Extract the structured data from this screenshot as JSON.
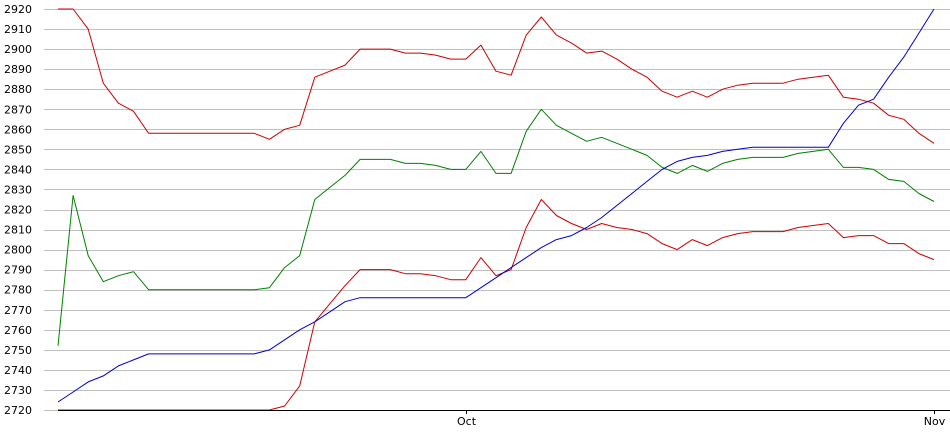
{
  "chart_data": {
    "type": "line",
    "title": "",
    "xlabel": "",
    "ylabel": "",
    "ylim": [
      2720,
      2920
    ],
    "y_ticks": [
      2720,
      2730,
      2740,
      2750,
      2760,
      2770,
      2780,
      2790,
      2800,
      2810,
      2820,
      2830,
      2840,
      2850,
      2860,
      2870,
      2880,
      2890,
      2900,
      2910,
      2920
    ],
    "x_tick_labels": [
      {
        "label": "Oct",
        "index": 27
      },
      {
        "label": "Nov",
        "index": 58
      }
    ],
    "grid": "horizontal",
    "legend": "none",
    "colors": {
      "upper_band": "#cc0000",
      "middle_band": "#008000",
      "lower_band": "#cc0000",
      "price": "#0000cc",
      "grid": "#c0c0c0",
      "axis": "#000000"
    },
    "series": [
      {
        "key": "upper_band",
        "values": [
          2920,
          2920,
          2910,
          2883,
          2873,
          2869,
          2858,
          2858,
          2858,
          2858,
          2858,
          2858,
          2858,
          2858,
          2855,
          2860,
          2862,
          2886,
          2889,
          2892,
          2900,
          2900,
          2900,
          2898,
          2898,
          2897,
          2895,
          2895,
          2902,
          2889,
          2887,
          2907,
          2916,
          2907,
          2903,
          2898,
          2899,
          2895,
          2890,
          2886,
          2879,
          2876,
          2879,
          2876,
          2880,
          2882,
          2883,
          2883,
          2883,
          2885,
          2886,
          2887,
          2876,
          2875,
          2873,
          2867,
          2865,
          2858,
          2853
        ]
      },
      {
        "key": "middle_band",
        "values": [
          2752,
          2827,
          2797,
          2784,
          2787,
          2789,
          2780,
          2780,
          2780,
          2780,
          2780,
          2780,
          2780,
          2780,
          2781,
          2791,
          2797,
          2825,
          2831,
          2837,
          2845,
          2845,
          2845,
          2843,
          2843,
          2842,
          2840,
          2840,
          2849,
          2838,
          2838,
          2859,
          2870,
          2862,
          2858,
          2854,
          2856,
          2853,
          2850,
          2847,
          2841,
          2838,
          2842,
          2839,
          2843,
          2845,
          2846,
          2846,
          2846,
          2848,
          2849,
          2850,
          2841,
          2841,
          2840,
          2835,
          2834,
          2828,
          2824
        ]
      },
      {
        "key": "lower_band",
        "values": [
          2720,
          2720,
          2720,
          2720,
          2720,
          2720,
          2720,
          2720,
          2720,
          2720,
          2720,
          2720,
          2720,
          2720,
          2720,
          2722,
          2732,
          2764,
          2773,
          2782,
          2790,
          2790,
          2790,
          2788,
          2788,
          2787,
          2785,
          2785,
          2796,
          2787,
          2790,
          2811,
          2825,
          2817,
          2813,
          2810,
          2813,
          2811,
          2810,
          2808,
          2803,
          2800,
          2805,
          2802,
          2806,
          2808,
          2809,
          2809,
          2809,
          2811,
          2812,
          2813,
          2806,
          2807,
          2807,
          2803,
          2803,
          2798,
          2795
        ]
      },
      {
        "key": "price",
        "values": [
          2724,
          2729,
          2734,
          2737,
          2742,
          2745,
          2748,
          2748,
          2748,
          2748,
          2748,
          2748,
          2748,
          2748,
          2750,
          2755,
          2760,
          2764,
          2769,
          2774,
          2776,
          2776,
          2776,
          2776,
          2776,
          2776,
          2776,
          2776,
          2781,
          2786,
          2791,
          2796,
          2801,
          2805,
          2807,
          2811,
          2816,
          2822,
          2828,
          2834,
          2840,
          2844,
          2846,
          2847,
          2849,
          2850,
          2851,
          2851,
          2851,
          2851,
          2851,
          2851,
          2863,
          2872,
          2875,
          2886,
          2896,
          2908,
          2920
        ]
      }
    ]
  }
}
